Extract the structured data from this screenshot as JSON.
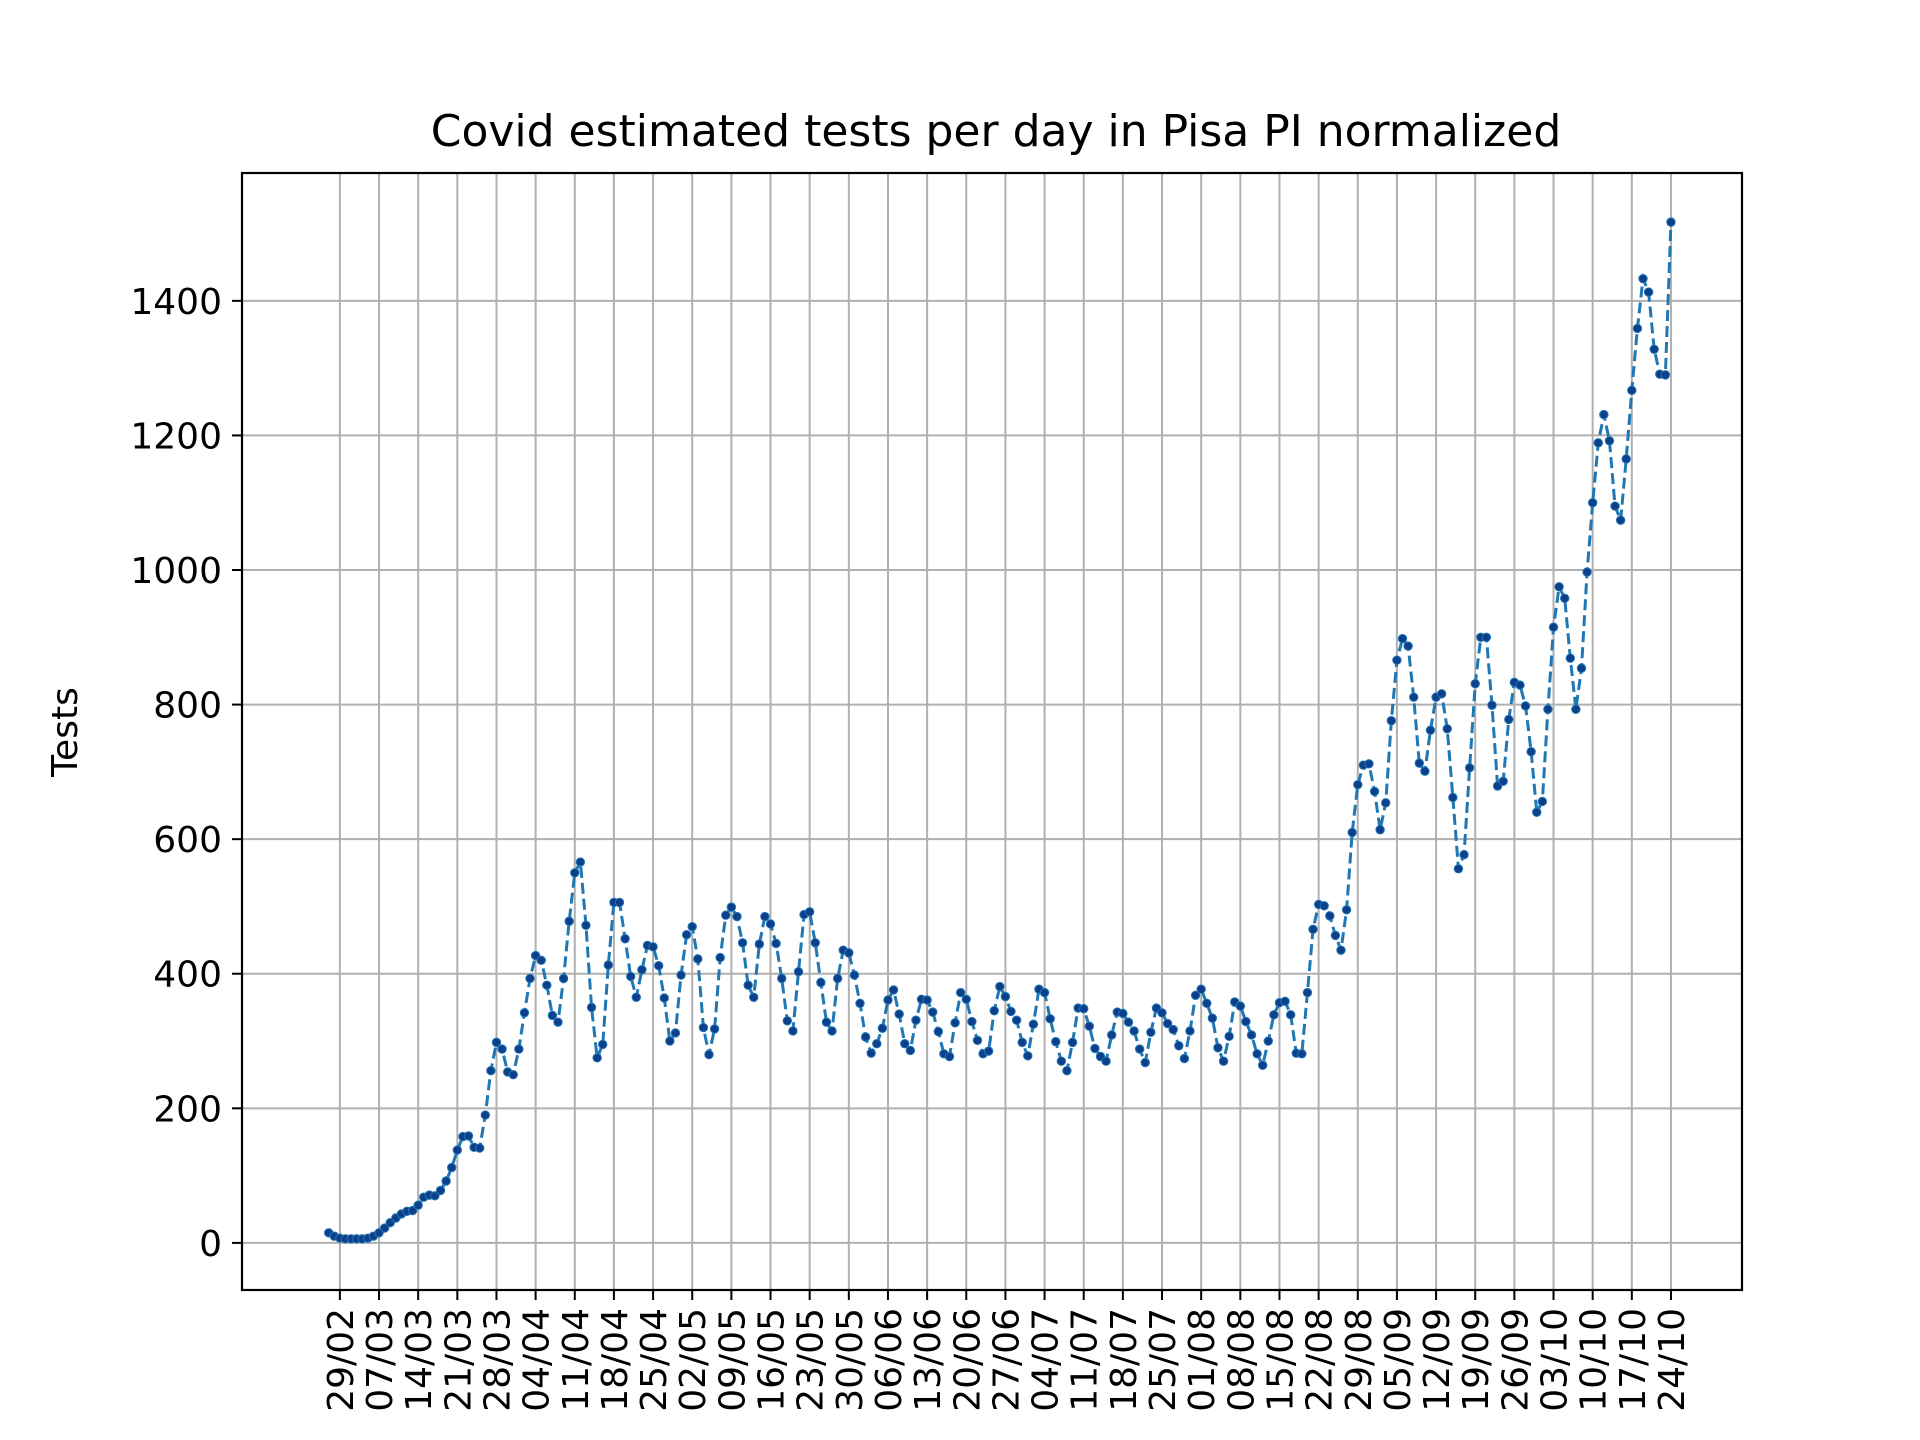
{
  "chart_data": {
    "type": "line",
    "title": "Covid estimated tests per day in Pisa PI normalized",
    "xlabel": "",
    "ylabel": "Tests",
    "ylim": [
      -70,
      1590
    ],
    "yticks": [
      0,
      200,
      400,
      600,
      800,
      1000,
      1200,
      1400
    ],
    "grid": true,
    "line_style": "dashed",
    "marker": "dot",
    "color": "#1f77b4",
    "marker_color": "#0d3f8a",
    "x_start_day": 0,
    "x_ticks": [
      {
        "day": 2,
        "label": "29/02"
      },
      {
        "day": 9,
        "label": "07/03"
      },
      {
        "day": 16,
        "label": "14/03"
      },
      {
        "day": 23,
        "label": "21/03"
      },
      {
        "day": 30,
        "label": "28/03"
      },
      {
        "day": 37,
        "label": "04/04"
      },
      {
        "day": 44,
        "label": "11/04"
      },
      {
        "day": 51,
        "label": "18/04"
      },
      {
        "day": 58,
        "label": "25/04"
      },
      {
        "day": 65,
        "label": "02/05"
      },
      {
        "day": 72,
        "label": "09/05"
      },
      {
        "day": 79,
        "label": "16/05"
      },
      {
        "day": 86,
        "label": "23/05"
      },
      {
        "day": 93,
        "label": "30/05"
      },
      {
        "day": 100,
        "label": "06/06"
      },
      {
        "day": 107,
        "label": "13/06"
      },
      {
        "day": 114,
        "label": "20/06"
      },
      {
        "day": 121,
        "label": "27/06"
      },
      {
        "day": 128,
        "label": "04/07"
      },
      {
        "day": 135,
        "label": "11/07"
      },
      {
        "day": 142,
        "label": "18/07"
      },
      {
        "day": 149,
        "label": "25/07"
      },
      {
        "day": 156,
        "label": "01/08"
      },
      {
        "day": 163,
        "label": "08/08"
      },
      {
        "day": 170,
        "label": "15/08"
      },
      {
        "day": 177,
        "label": "22/08"
      },
      {
        "day": 184,
        "label": "29/08"
      },
      {
        "day": 191,
        "label": "05/09"
      },
      {
        "day": 198,
        "label": "12/09"
      },
      {
        "day": 205,
        "label": "19/09"
      },
      {
        "day": 212,
        "label": "26/09"
      },
      {
        "day": 219,
        "label": "03/10"
      },
      {
        "day": 226,
        "label": "10/10"
      },
      {
        "day": 233,
        "label": "17/10"
      },
      {
        "day": 240,
        "label": "24/10"
      }
    ],
    "series": [
      {
        "values": [
          15,
          10,
          7,
          6,
          6,
          6,
          6,
          7,
          10,
          15,
          22,
          30,
          37,
          43,
          47,
          48,
          56,
          68,
          71,
          70,
          78,
          92,
          112,
          138,
          158,
          159,
          142,
          141,
          190,
          256,
          298,
          288,
          254,
          250,
          288,
          342,
          393,
          427,
          420,
          383,
          338,
          328,
          393,
          478,
          550,
          566,
          472,
          350,
          275,
          295,
          413,
          506,
          506,
          452,
          396,
          365,
          406,
          442,
          440,
          412,
          364,
          300,
          312,
          398,
          458,
          470,
          422,
          320,
          280,
          318,
          424,
          487,
          499,
          485,
          446,
          383,
          365,
          444,
          485,
          474,
          445,
          393,
          330,
          315,
          403,
          488,
          492,
          446,
          387,
          328,
          315,
          393,
          435,
          431,
          398,
          356,
          306,
          282,
          296,
          319,
          361,
          376,
          340,
          296,
          286,
          331,
          362,
          361,
          343,
          314,
          281,
          277,
          327,
          372,
          362,
          329,
          301,
          281,
          285,
          345,
          381,
          366,
          344,
          331,
          298,
          278,
          325,
          377,
          372,
          333,
          299,
          270,
          256,
          298,
          349,
          348,
          322,
          289,
          277,
          270,
          309,
          343,
          341,
          328,
          315,
          288,
          268,
          313,
          349,
          342,
          326,
          317,
          293,
          274,
          315,
          368,
          377,
          356,
          334,
          290,
          270,
          307,
          358,
          352,
          329,
          309,
          281,
          264,
          300,
          339,
          357,
          359,
          339,
          282,
          281,
          372,
          466,
          503,
          501,
          486,
          457,
          435,
          495,
          610,
          681,
          710,
          712,
          671,
          614,
          654,
          776,
          866,
          898,
          887,
          811,
          713,
          701,
          762,
          811,
          816,
          764,
          662,
          556,
          577,
          706,
          831,
          900,
          900,
          799,
          679,
          686,
          778,
          833,
          829,
          798,
          730,
          640,
          656,
          793,
          915,
          975,
          958,
          869,
          793,
          854,
          997,
          1100,
          1189,
          1231,
          1192,
          1095,
          1074,
          1165,
          1267,
          1359,
          1433,
          1413,
          1328,
          1291,
          1290,
          1517
        ]
      }
    ]
  }
}
